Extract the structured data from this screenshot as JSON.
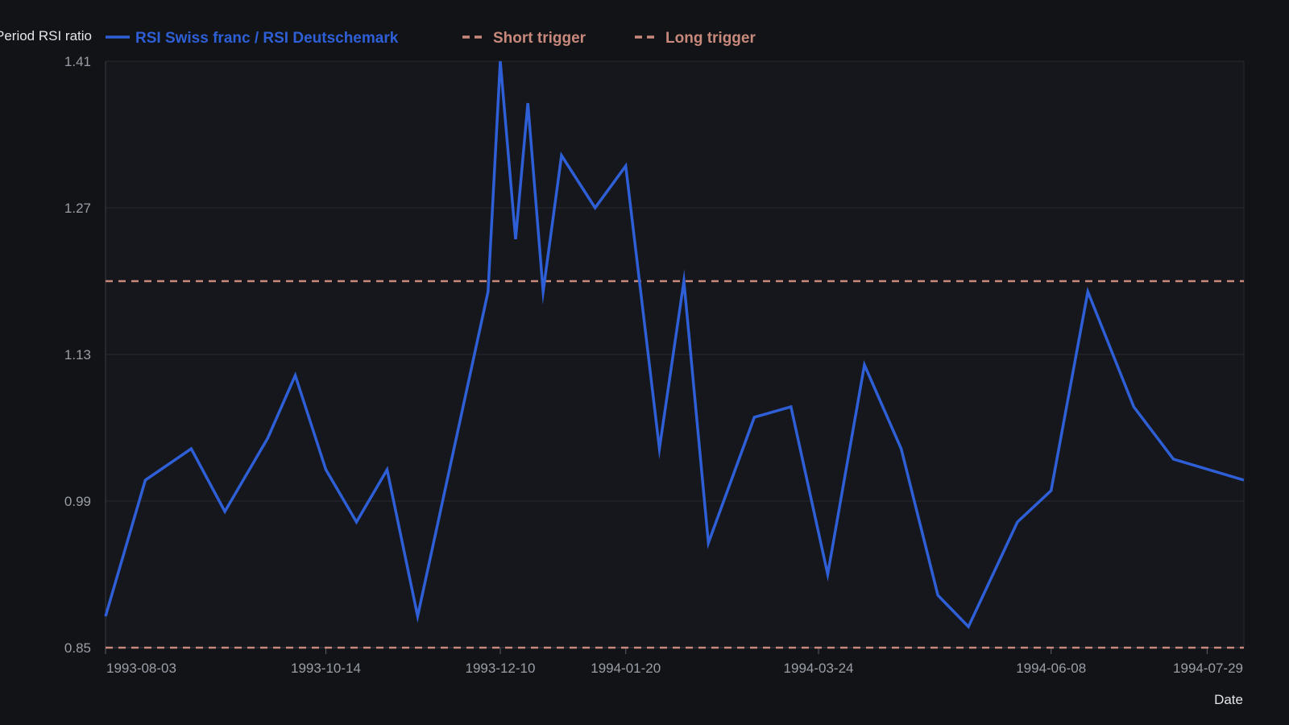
{
  "chart_data": {
    "type": "line",
    "ylabel": "Period RSI ratio",
    "xlabel": "Date",
    "ylim": [
      0.85,
      1.41
    ],
    "xlim": [
      "1993-08-03",
      "1994-08-10"
    ],
    "yticks": [
      "0.85",
      "0.99",
      "1.13",
      "1.27",
      "1.41"
    ],
    "xticks": [
      "1993-08-03",
      "1993-10-14",
      "1993-12-10",
      "1994-01-20",
      "1994-03-24",
      "1994-06-08",
      "1994-07-29"
    ],
    "grid": true,
    "legend_position": "top",
    "series": [
      {
        "name": "RSI Swiss franc / RSI Deutschemark",
        "color": "#2f5fd6",
        "style": "solid",
        "x": [
          "1993-08-03",
          "1993-08-16",
          "1993-08-31",
          "1993-09-11",
          "1993-09-25",
          "1993-10-04",
          "1993-10-14",
          "1993-10-24",
          "1993-11-03",
          "1993-11-13",
          "1993-12-06",
          "1993-12-10",
          "1993-12-15",
          "1993-12-19",
          "1993-12-24",
          "1993-12-30",
          "1994-01-10",
          "1994-01-20",
          "1994-01-31",
          "1994-02-08",
          "1994-02-16",
          "1994-03-03",
          "1994-03-15",
          "1994-03-27",
          "1994-04-08",
          "1994-04-20",
          "1994-05-02",
          "1994-05-12",
          "1994-05-28",
          "1994-06-08",
          "1994-06-20",
          "1994-07-05",
          "1994-07-18",
          "1994-08-10"
        ],
        "values": [
          0.88,
          1.01,
          1.04,
          0.98,
          1.05,
          1.11,
          1.02,
          0.97,
          1.02,
          0.88,
          1.19,
          1.41,
          1.24,
          1.37,
          1.19,
          1.32,
          1.27,
          1.31,
          1.04,
          1.2,
          0.95,
          1.07,
          1.08,
          0.92,
          1.12,
          1.04,
          0.9,
          0.87,
          0.97,
          1.0,
          1.19,
          1.08,
          1.03,
          1.01
        ]
      },
      {
        "name": "Short trigger",
        "color": "#c8897c",
        "style": "dashed",
        "value": 1.2
      },
      {
        "name": "Long trigger",
        "color": "#c8897c",
        "style": "dashed",
        "value": 0.85
      }
    ]
  }
}
